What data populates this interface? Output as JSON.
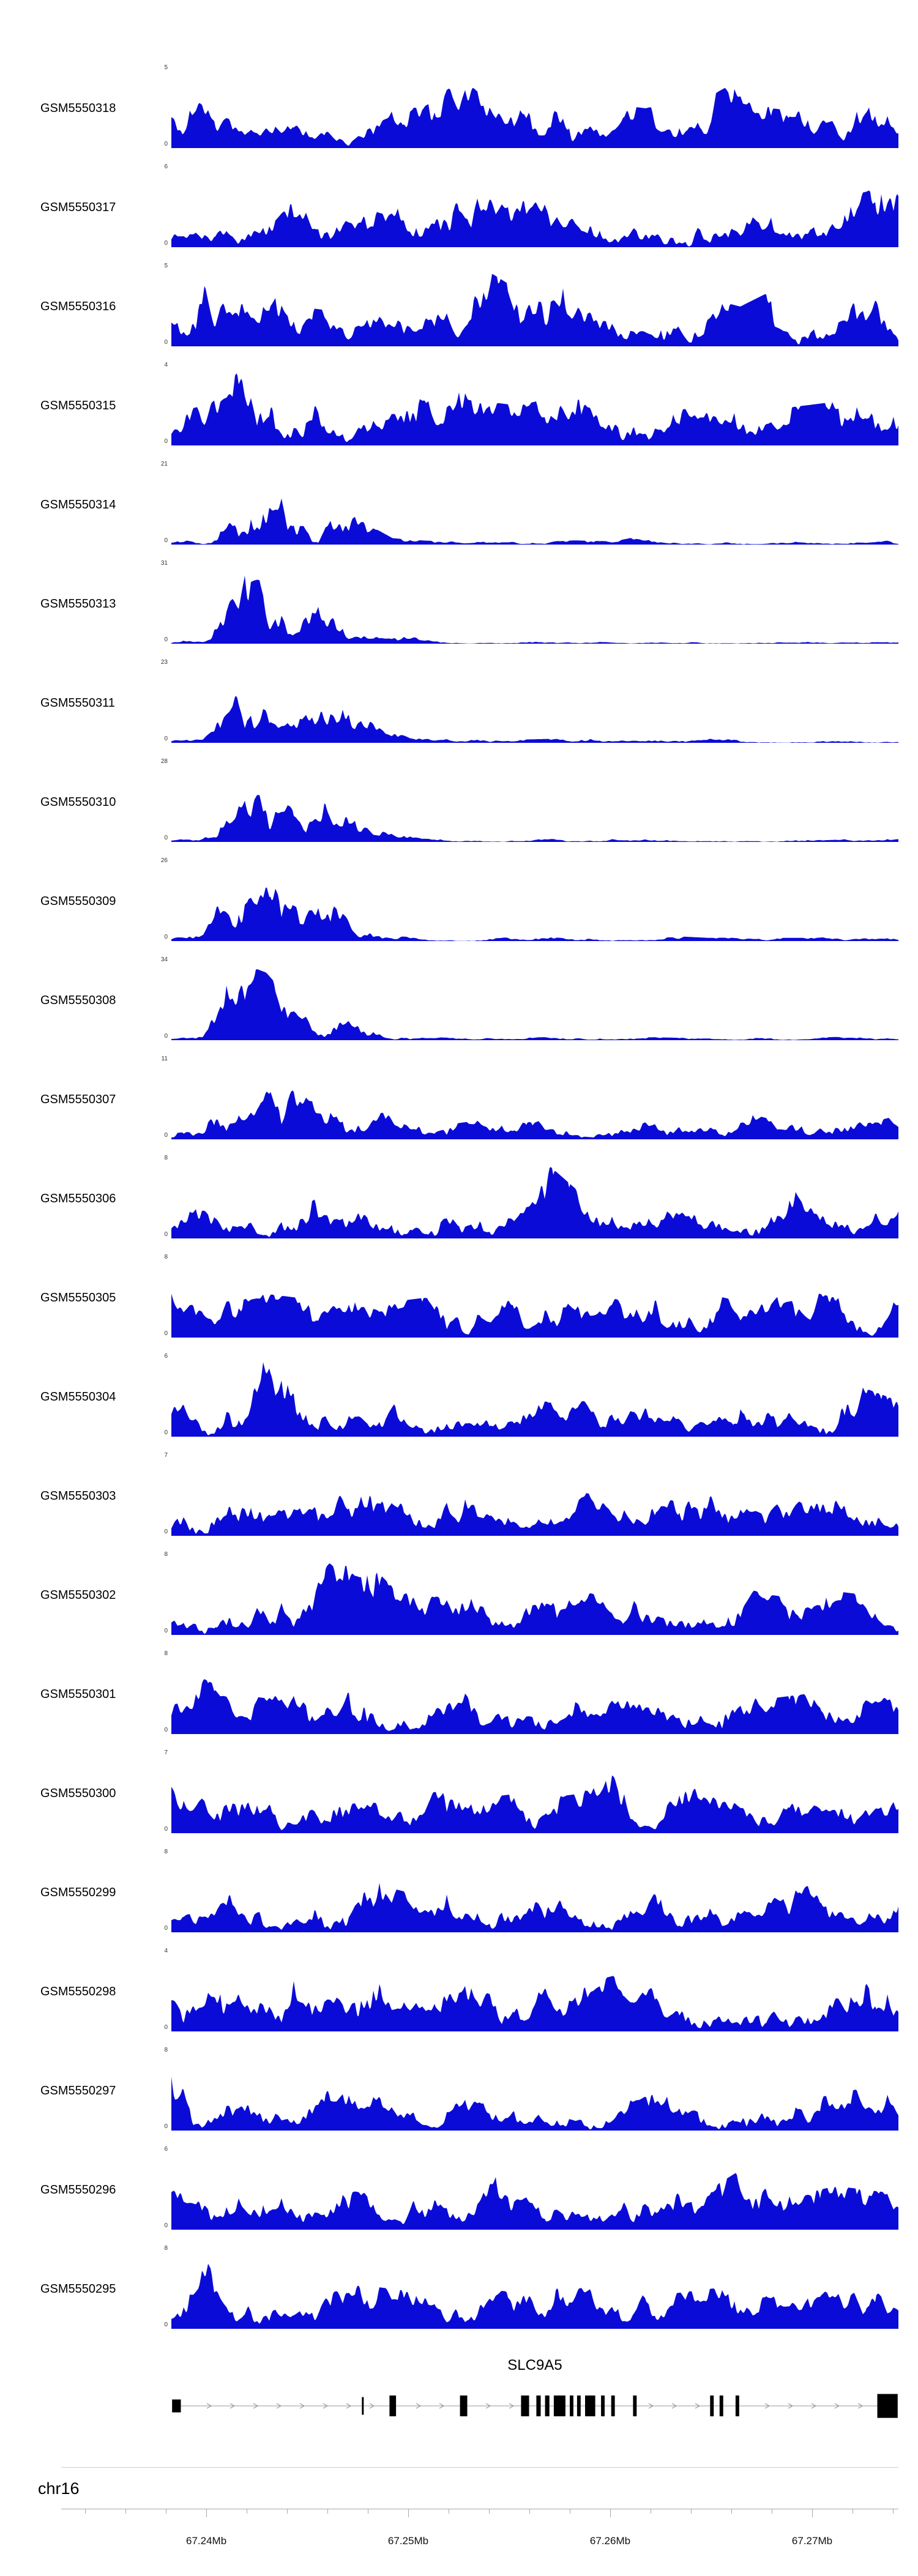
{
  "chart_data": {
    "type": "area",
    "description": "Genome browser read-coverage tracks (blue filled area per GEO sample) over chr16 around the SLC9A5 gene",
    "signal_color": "#0b0bd8",
    "region": {
      "chromosome": "chr16",
      "x_tick_labels": [
        "67.24Mb",
        "67.25Mb",
        "67.26Mb",
        "67.27Mb"
      ]
    },
    "tracks": [
      {
        "label": "GSM5550318",
        "ymin": 0,
        "ymax": 5,
        "seed": 1,
        "envelope": [
          0.55,
          0.6,
          0.5,
          0.55,
          0.45,
          0.5,
          0.45,
          0.5,
          0.55,
          0.95,
          0.6,
          0.65,
          1.0,
          0.7,
          0.55,
          0.5,
          0.6,
          0.9,
          0.75,
          0.5,
          0.45,
          0.55,
          0.5,
          0.65
        ]
      },
      {
        "label": "GSM5550317",
        "ymin": 0,
        "ymax": 6,
        "seed": 2,
        "envelope": [
          0.5,
          0.45,
          0.55,
          0.5,
          0.6,
          0.45,
          0.5,
          0.55,
          0.5,
          0.9,
          0.6,
          0.55,
          0.95,
          0.8,
          0.6,
          0.5,
          0.85,
          0.6,
          0.5,
          0.55,
          0.45,
          0.6,
          0.7,
          0.9
        ]
      },
      {
        "label": "GSM5550316",
        "ymin": 0,
        "ymax": 5,
        "seed": 3,
        "envelope": [
          0.6,
          0.8,
          0.95,
          0.7,
          0.5,
          0.45,
          0.4,
          0.45,
          0.5,
          0.85,
          0.95,
          0.7,
          0.9,
          1.0,
          0.65,
          0.5,
          0.8,
          0.6,
          0.5,
          0.7,
          0.45,
          0.5,
          0.6,
          0.5
        ]
      },
      {
        "label": "GSM5550315",
        "ymin": 0,
        "ymax": 4,
        "seed": 4,
        "envelope": [
          0.4,
          0.5,
          0.9,
          1.0,
          0.6,
          0.45,
          0.4,
          0.45,
          0.8,
          0.9,
          0.55,
          0.5,
          0.6,
          0.75,
          0.5,
          0.45,
          0.6,
          0.8,
          0.5,
          0.45,
          0.5,
          0.55,
          0.6,
          0.95
        ]
      },
      {
        "label": "GSM5550314",
        "ymin": 0,
        "ymax": 21,
        "seed": 5,
        "envelope": [
          0.05,
          0.1,
          0.8,
          1.0,
          0.5,
          0.55,
          0.3,
          0.08,
          0.05,
          0.04,
          0.05,
          0.04,
          0.06,
          0.05,
          0.04,
          0.12,
          0.05,
          0.04,
          0.05,
          0.06,
          0.04,
          0.05,
          0.04,
          0.06
        ]
      },
      {
        "label": "GSM5550313",
        "ymin": 0,
        "ymax": 31,
        "seed": 6,
        "envelope": [
          0.03,
          0.08,
          0.9,
          1.0,
          0.45,
          0.5,
          0.35,
          0.15,
          0.05,
          0.03,
          0.04,
          0.03,
          0.04,
          0.03,
          0.05,
          0.04,
          0.08,
          0.03,
          0.04,
          0.03,
          0.04,
          0.03,
          0.04,
          0.03
        ]
      },
      {
        "label": "GSM5550311",
        "ymin": 0,
        "ymax": 23,
        "seed": 7,
        "envelope": [
          0.04,
          0.1,
          0.85,
          1.0,
          0.6,
          0.65,
          0.4,
          0.12,
          0.06,
          0.04,
          0.05,
          0.04,
          0.05,
          0.06,
          0.04,
          0.05,
          0.08,
          0.05,
          0.04,
          0.05,
          0.04,
          0.06,
          0.04,
          0.05
        ]
      },
      {
        "label": "GSM5550310",
        "ymin": 0,
        "ymax": 28,
        "seed": 8,
        "envelope": [
          0.03,
          0.12,
          0.9,
          1.0,
          0.5,
          0.55,
          0.3,
          0.1,
          0.04,
          0.03,
          0.04,
          0.03,
          0.05,
          0.03,
          0.04,
          0.05,
          0.04,
          0.03,
          0.04,
          0.03,
          0.05,
          0.03,
          0.04,
          0.04
        ]
      },
      {
        "label": "GSM5550309",
        "ymin": 0,
        "ymax": 26,
        "seed": 9,
        "envelope": [
          0.04,
          0.1,
          0.95,
          0.8,
          0.45,
          0.6,
          0.35,
          0.1,
          0.05,
          0.04,
          0.05,
          0.04,
          0.06,
          0.04,
          0.05,
          0.04,
          0.06,
          0.04,
          0.05,
          0.04,
          0.04,
          0.05,
          0.04,
          0.05
        ]
      },
      {
        "label": "GSM5550308",
        "ymin": 0,
        "ymax": 34,
        "seed": 10,
        "envelope": [
          0.03,
          0.08,
          1.0,
          0.85,
          0.4,
          0.5,
          0.3,
          0.08,
          0.04,
          0.03,
          0.04,
          0.03,
          0.04,
          0.05,
          0.03,
          0.04,
          0.03,
          0.04,
          0.03,
          0.04,
          0.03,
          0.04,
          0.03,
          0.04
        ]
      },
      {
        "label": "GSM5550307",
        "ymin": 0,
        "ymax": 11,
        "seed": 11,
        "envelope": [
          0.15,
          0.3,
          0.9,
          1.0,
          0.6,
          0.5,
          0.4,
          0.3,
          0.25,
          0.2,
          0.25,
          0.2,
          0.25,
          0.2,
          0.25,
          0.3,
          0.2,
          0.25,
          0.35,
          0.25,
          0.2,
          0.25,
          0.2,
          0.3
        ]
      },
      {
        "label": "GSM5550306",
        "ymin": 0,
        "ymax": 8,
        "seed": 12,
        "envelope": [
          0.45,
          0.5,
          0.6,
          0.45,
          0.9,
          0.5,
          0.55,
          0.45,
          0.5,
          0.6,
          0.45,
          0.5,
          0.9,
          0.55,
          0.5,
          0.45,
          0.55,
          0.5,
          0.45,
          0.5,
          0.85,
          0.5,
          0.45,
          0.6
        ]
      },
      {
        "label": "GSM5550305",
        "ymin": 0,
        "ymax": 8,
        "seed": 13,
        "envelope": [
          1.0,
          0.5,
          0.45,
          0.55,
          0.5,
          0.45,
          0.5,
          0.45,
          0.5,
          0.45,
          0.4,
          0.5,
          0.45,
          0.55,
          0.7,
          0.45,
          0.5,
          0.55,
          0.45,
          0.5,
          0.6,
          0.5,
          0.45,
          0.5
        ]
      },
      {
        "label": "GSM5550304",
        "ymin": 0,
        "ymax": 6,
        "seed": 14,
        "envelope": [
          0.5,
          0.4,
          0.45,
          1.0,
          0.5,
          0.45,
          0.4,
          0.5,
          0.45,
          0.4,
          0.45,
          0.4,
          0.45,
          0.5,
          0.4,
          0.6,
          0.45,
          0.4,
          0.5,
          0.45,
          0.4,
          0.8,
          0.6,
          0.45
        ]
      },
      {
        "label": "GSM5550303",
        "ymin": 0,
        "ymax": 7,
        "seed": 15,
        "envelope": [
          0.45,
          0.7,
          0.5,
          0.55,
          0.45,
          0.9,
          0.6,
          0.5,
          0.55,
          0.45,
          0.5,
          0.45,
          0.5,
          0.55,
          0.45,
          0.5,
          0.95,
          0.6,
          0.5,
          0.45,
          0.55,
          0.5,
          0.6,
          0.5
        ]
      },
      {
        "label": "GSM5550302",
        "ymin": 0,
        "ymax": 8,
        "seed": 16,
        "envelope": [
          0.4,
          0.45,
          0.5,
          0.55,
          0.45,
          0.9,
          1.0,
          0.6,
          0.5,
          0.45,
          0.5,
          0.45,
          0.5,
          0.55,
          0.45,
          0.5,
          0.45,
          0.55,
          0.6,
          0.5,
          0.45,
          0.55,
          0.5,
          0.45
        ]
      },
      {
        "label": "GSM5550301",
        "ymin": 0,
        "ymax": 8,
        "seed": 17,
        "envelope": [
          0.45,
          0.7,
          0.5,
          0.45,
          0.55,
          0.5,
          1.0,
          0.6,
          0.45,
          0.5,
          0.55,
          0.45,
          0.5,
          0.45,
          0.55,
          0.5,
          0.45,
          0.6,
          0.5,
          0.45,
          0.5,
          0.55,
          0.45,
          0.5
        ]
      },
      {
        "label": "GSM5550300",
        "ymin": 0,
        "ymax": 7,
        "seed": 18,
        "envelope": [
          0.6,
          0.5,
          0.55,
          0.45,
          0.5,
          0.55,
          0.5,
          0.45,
          0.5,
          0.55,
          0.45,
          0.5,
          0.45,
          0.5,
          1.0,
          0.55,
          0.5,
          0.6,
          0.45,
          0.5,
          0.55,
          0.45,
          0.5,
          0.45
        ]
      },
      {
        "label": "GSM5550299",
        "ymin": 0,
        "ymax": 8,
        "seed": 19,
        "envelope": [
          0.4,
          0.45,
          0.8,
          0.5,
          0.45,
          0.5,
          0.9,
          0.55,
          0.45,
          0.5,
          0.45,
          0.5,
          0.55,
          0.45,
          0.5,
          0.45,
          0.55,
          0.5,
          0.45,
          0.5,
          0.6,
          0.45,
          0.5,
          0.55
        ]
      },
      {
        "label": "GSM5550298",
        "ymin": 0,
        "ymax": 4,
        "seed": 20,
        "envelope": [
          0.6,
          0.65,
          0.7,
          0.6,
          0.75,
          0.65,
          0.7,
          0.6,
          0.65,
          0.7,
          0.6,
          0.65,
          0.75,
          0.6,
          0.7,
          0.65,
          0.6,
          0.7,
          0.65,
          0.75,
          0.6,
          0.65,
          0.7,
          0.6
        ]
      },
      {
        "label": "GSM5550297",
        "ymin": 0,
        "ymax": 8,
        "seed": 21,
        "envelope": [
          0.9,
          0.5,
          0.4,
          0.45,
          0.4,
          0.5,
          0.45,
          0.4,
          0.5,
          0.45,
          0.4,
          0.45,
          0.5,
          0.4,
          0.45,
          0.5,
          0.4,
          0.85,
          0.6,
          0.45,
          0.5,
          0.45,
          0.55,
          0.5
        ]
      },
      {
        "label": "GSM5550296",
        "ymin": 0,
        "ymax": 6,
        "seed": 22,
        "envelope": [
          0.5,
          0.55,
          0.45,
          0.5,
          0.45,
          0.55,
          0.5,
          0.45,
          0.55,
          0.5,
          0.7,
          0.55,
          0.5,
          0.45,
          0.5,
          0.55,
          0.45,
          0.5,
          0.75,
          0.5,
          0.45,
          0.55,
          0.5,
          0.45
        ]
      },
      {
        "label": "GSM5550295",
        "ymin": 0,
        "ymax": 8,
        "seed": 23,
        "envelope": [
          0.45,
          0.9,
          0.5,
          0.45,
          0.5,
          0.45,
          0.55,
          0.5,
          0.45,
          0.55,
          0.5,
          0.45,
          0.5,
          0.55,
          0.45,
          0.5,
          0.45,
          0.5,
          0.55,
          0.45,
          0.5,
          0.45,
          0.8,
          0.5
        ]
      }
    ],
    "gene": {
      "name": "SLC9A5",
      "strand": "+",
      "color": "#000000",
      "intron_color": "#9a9a9a",
      "exons": [
        {
          "x": 0.001,
          "w": 0.012,
          "h": 0.62
        },
        {
          "x": 0.262,
          "w": 0.0025,
          "h": 0.85
        },
        {
          "x": 0.3,
          "w": 0.009,
          "h": 1.0
        },
        {
          "x": 0.397,
          "w": 0.01,
          "h": 1.0
        },
        {
          "x": 0.481,
          "w": 0.011,
          "h": 1.0
        },
        {
          "x": 0.502,
          "w": 0.006,
          "h": 1.0
        },
        {
          "x": 0.514,
          "w": 0.006,
          "h": 1.0
        },
        {
          "x": 0.526,
          "w": 0.016,
          "h": 1.0
        },
        {
          "x": 0.548,
          "w": 0.005,
          "h": 1.0
        },
        {
          "x": 0.558,
          "w": 0.005,
          "h": 1.0
        },
        {
          "x": 0.569,
          "w": 0.014,
          "h": 1.0
        },
        {
          "x": 0.591,
          "w": 0.005,
          "h": 1.0
        },
        {
          "x": 0.605,
          "w": 0.005,
          "h": 1.0
        },
        {
          "x": 0.635,
          "w": 0.005,
          "h": 1.0
        },
        {
          "x": 0.741,
          "w": 0.005,
          "h": 1.0
        },
        {
          "x": 0.754,
          "w": 0.005,
          "h": 1.0
        },
        {
          "x": 0.776,
          "w": 0.005,
          "h": 1.0
        },
        {
          "x": 0.971,
          "w": 0.028,
          "h": 1.15
        }
      ]
    },
    "ruler": {
      "major_ticks": [
        {
          "pos": 0.1733,
          "label": "67.24Mb"
        },
        {
          "pos": 0.4145,
          "label": "67.25Mb"
        },
        {
          "pos": 0.6557,
          "label": "67.26Mb"
        },
        {
          "pos": 0.8969,
          "label": "67.27Mb"
        }
      ],
      "minor_tick_spacing": 0.04825
    }
  }
}
